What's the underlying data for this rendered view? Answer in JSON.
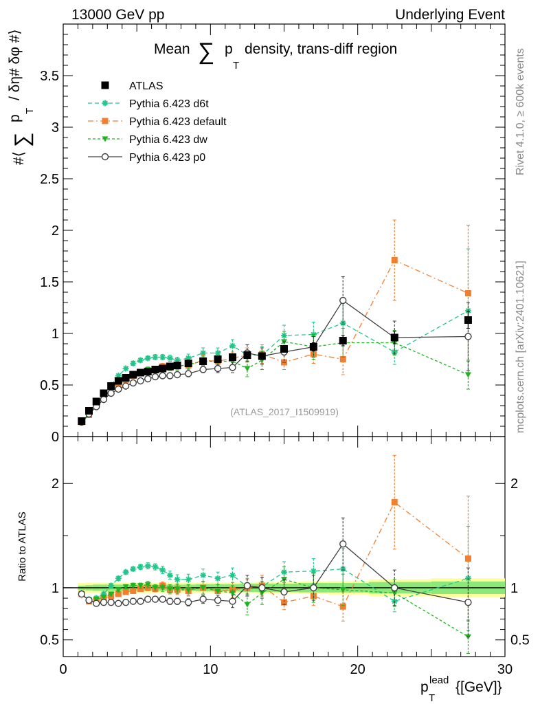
{
  "header": {
    "left": "13000 GeV pp",
    "right": "Underlying Event"
  },
  "side_labels": {
    "rivet": "Rivet 4.1.0, ≥ 600k events",
    "mcplots": "mcplots.cern.ch [arXiv:2401.10621]"
  },
  "chart_data": [
    {
      "type": "scatter",
      "panel": "main",
      "title_parts": {
        "prefix": "Mean",
        "sum": "∑",
        "p": "p",
        "sub": "T",
        "suffix": "density, trans-diff region"
      },
      "ylabel_parts": {
        "hash_open": "#⟨",
        "sum": "∑",
        "p": "p",
        "sub": "T",
        "rest": "/ δη# δφ #⟩"
      },
      "watermark": "(ATLAS_2017_I1509919)",
      "xlim": [
        0,
        30
      ],
      "ylim": [
        0,
        4.0
      ],
      "xticks": [
        "0",
        "10",
        "20",
        "30"
      ],
      "yticks": [
        {
          "v": 0.5,
          "label": "0.5"
        },
        {
          "v": 1,
          "label": "1"
        },
        {
          "v": 1.5,
          "label": "1.5"
        },
        {
          "v": 2,
          "label": "2"
        },
        {
          "v": 2.5,
          "label": "2.5"
        },
        {
          "v": 3,
          "label": "3"
        },
        {
          "v": 3.5,
          "label": "3.5"
        },
        {
          "v": 0,
          "label": "0"
        }
      ],
      "legend_position": "top-left",
      "x": [
        1.25,
        1.75,
        2.25,
        2.75,
        3.25,
        3.75,
        4.25,
        4.75,
        5.25,
        5.75,
        6.25,
        6.75,
        7.25,
        7.75,
        8.5,
        9.5,
        10.5,
        11.5,
        12.5,
        13.5,
        15.0,
        17.0,
        19.0,
        22.5,
        27.5
      ],
      "series": [
        {
          "name": "ATLAS",
          "style": "data",
          "color": "#000000",
          "marker": "square",
          "values": [
            0.15,
            0.25,
            0.34,
            0.42,
            0.49,
            0.54,
            0.57,
            0.6,
            0.62,
            0.63,
            0.65,
            0.66,
            0.68,
            0.69,
            0.71,
            0.73,
            0.75,
            0.77,
            0.79,
            0.78,
            0.85,
            0.87,
            0.93,
            0.96,
            1.13
          ],
          "errors": [
            0.005,
            0.005,
            0.006,
            0.007,
            0.008,
            0.008,
            0.009,
            0.009,
            0.01,
            0.01,
            0.01,
            0.01,
            0.012,
            0.012,
            0.012,
            0.015,
            0.017,
            0.02,
            0.022,
            0.025,
            0.03,
            0.04,
            0.05,
            0.06,
            0.08
          ]
        },
        {
          "name": "Pythia 6.423 d6t",
          "style": "dash",
          "color": "#20c58a",
          "marker": "star",
          "values": [
            0.14,
            0.22,
            0.31,
            0.4,
            0.5,
            0.59,
            0.66,
            0.71,
            0.74,
            0.76,
            0.77,
            0.77,
            0.76,
            0.74,
            0.76,
            0.81,
            0.81,
            0.88,
            0.79,
            0.79,
            0.98,
            0.99,
            1.1,
            0.82,
            1.22
          ],
          "errors": [
            0.01,
            0.01,
            0.01,
            0.012,
            0.012,
            0.015,
            0.015,
            0.02,
            0.02,
            0.02,
            0.025,
            0.025,
            0.03,
            0.03,
            0.04,
            0.05,
            0.05,
            0.06,
            0.07,
            0.08,
            0.1,
            0.12,
            0.2,
            0.12,
            0.6
          ]
        },
        {
          "name": "Pythia 6.423 default",
          "style": "dashdot",
          "color": "#f07f30",
          "marker": "square",
          "values": [
            0.14,
            0.21,
            0.3,
            0.38,
            0.45,
            0.51,
            0.55,
            0.59,
            0.62,
            0.63,
            0.65,
            0.68,
            0.67,
            0.68,
            0.69,
            0.74,
            0.73,
            0.76,
            0.79,
            0.8,
            0.72,
            0.8,
            0.75,
            1.71,
            1.39
          ],
          "errors": [
            0.008,
            0.01,
            0.01,
            0.012,
            0.012,
            0.015,
            0.015,
            0.02,
            0.02,
            0.025,
            0.025,
            0.03,
            0.03,
            0.035,
            0.04,
            0.05,
            0.05,
            0.06,
            0.07,
            0.09,
            0.07,
            0.09,
            0.15,
            0.39,
            0.66
          ]
        },
        {
          "name": "Pythia 6.423 dw",
          "style": "dotted",
          "color": "#1fb41f",
          "marker": "triangle-down",
          "values": [
            0.14,
            0.21,
            0.3,
            0.38,
            0.46,
            0.53,
            0.58,
            0.61,
            0.63,
            0.65,
            0.65,
            0.66,
            0.67,
            0.68,
            0.7,
            0.73,
            0.73,
            0.73,
            0.66,
            0.74,
            0.92,
            0.87,
            0.91,
            0.91,
            0.6
          ],
          "errors": [
            0.008,
            0.01,
            0.01,
            0.012,
            0.012,
            0.015,
            0.015,
            0.02,
            0.02,
            0.025,
            0.025,
            0.03,
            0.03,
            0.035,
            0.04,
            0.05,
            0.05,
            0.06,
            0.08,
            0.09,
            0.1,
            0.12,
            0.14,
            0.12,
            0.14
          ]
        },
        {
          "name": "Pythia 6.423 p0",
          "style": "solid",
          "color": "#404040",
          "marker": "open-circle",
          "values": [
            0.14,
            0.22,
            0.29,
            0.36,
            0.42,
            0.46,
            0.49,
            0.52,
            0.54,
            0.56,
            0.58,
            0.59,
            0.59,
            0.6,
            0.61,
            0.65,
            0.66,
            0.67,
            0.81,
            0.78,
            0.82,
            0.87,
            1.32,
            0.96,
            0.97
          ],
          "errors": [
            0.008,
            0.01,
            0.01,
            0.012,
            0.012,
            0.015,
            0.015,
            0.015,
            0.02,
            0.02,
            0.02,
            0.02,
            0.025,
            0.025,
            0.03,
            0.03,
            0.04,
            0.05,
            0.08,
            0.08,
            0.1,
            0.1,
            0.23,
            0.16,
            0.33
          ]
        }
      ]
    },
    {
      "type": "scatter",
      "panel": "ratio",
      "ylabel": "Ratio to ATLAS",
      "xlabel_parts": {
        "p": "p",
        "sup": "lead",
        "sub": "T",
        "rest": "{[GeV]}"
      },
      "xlim": [
        0,
        30
      ],
      "ylim": [
        0.34,
        2.45
      ],
      "xticks": [
        "0",
        "10",
        "20",
        "30"
      ],
      "yticks": [
        {
          "v": 0.5,
          "label": "0.5"
        },
        {
          "v": 1,
          "label": "1"
        },
        {
          "v": 2,
          "label": "2"
        }
      ],
      "band_inner": [
        0.02,
        0.025,
        0.03,
        0.03,
        0.03,
        0.03,
        0.03,
        0.03,
        0.03,
        0.03,
        0.03,
        0.03,
        0.03,
        0.03,
        0.03,
        0.035,
        0.035,
        0.035,
        0.04,
        0.04,
        0.04,
        0.045,
        0.045,
        0.055,
        0.06
      ],
      "band_outer": [
        0.045,
        0.05,
        0.05,
        0.05,
        0.05,
        0.05,
        0.05,
        0.05,
        0.05,
        0.05,
        0.05,
        0.05,
        0.05,
        0.05,
        0.05,
        0.05,
        0.05,
        0.05,
        0.05,
        0.055,
        0.055,
        0.06,
        0.065,
        0.08,
        0.09
      ],
      "band_colors": {
        "inner": "#8ce87a",
        "outer": "#ffff99"
      },
      "series": [
        {
          "name": "Pythia 6.423 d6t",
          "values": [
            0.95,
            0.89,
            0.9,
            0.94,
            1.02,
            1.09,
            1.15,
            1.18,
            1.2,
            1.21,
            1.2,
            1.17,
            1.12,
            1.08,
            1.08,
            1.12,
            1.09,
            1.12,
            1.01,
            1.01,
            1.15,
            1.16,
            1.18,
            0.87,
            1.09
          ],
          "errors": [
            0.02,
            0.02,
            0.02,
            0.02,
            0.02,
            0.02,
            0.02,
            0.02,
            0.025,
            0.03,
            0.03,
            0.035,
            0.04,
            0.045,
            0.05,
            0.06,
            0.06,
            0.07,
            0.08,
            0.09,
            0.1,
            0.12,
            0.2,
            0.1,
            0.5
          ]
        },
        {
          "name": "Pythia 6.423 default",
          "values": [
            0.94,
            0.87,
            0.87,
            0.9,
            0.92,
            0.94,
            0.96,
            0.97,
            0.99,
            1.0,
            0.99,
            1.02,
            0.98,
            0.98,
            0.97,
            1.0,
            0.97,
            0.98,
            1.0,
            1.02,
            0.86,
            0.92,
            0.82,
            1.82,
            1.28
          ],
          "errors": [
            0.02,
            0.02,
            0.02,
            0.02,
            0.02,
            0.02,
            0.02,
            0.025,
            0.025,
            0.03,
            0.03,
            0.035,
            0.04,
            0.045,
            0.05,
            0.06,
            0.06,
            0.07,
            0.08,
            0.1,
            0.07,
            0.09,
            0.14,
            0.45,
            0.6
          ]
        },
        {
          "name": "Pythia 6.423 dw",
          "values": [
            0.94,
            0.88,
            0.89,
            0.91,
            0.94,
            0.98,
            1.01,
            1.02,
            1.02,
            1.03,
            1.0,
            1.0,
            0.99,
            0.99,
            0.98,
            1.0,
            0.97,
            0.95,
            0.84,
            0.95,
            1.08,
            1.0,
            0.98,
            0.95,
            0.53
          ],
          "errors": [
            0.02,
            0.02,
            0.02,
            0.02,
            0.02,
            0.02,
            0.02,
            0.025,
            0.025,
            0.03,
            0.03,
            0.035,
            0.04,
            0.045,
            0.05,
            0.06,
            0.06,
            0.07,
            0.1,
            0.11,
            0.12,
            0.14,
            0.15,
            0.13,
            0.16
          ]
        },
        {
          "name": "Pythia 6.423 p0",
          "values": [
            0.94,
            0.88,
            0.85,
            0.86,
            0.86,
            0.85,
            0.86,
            0.87,
            0.87,
            0.89,
            0.89,
            0.89,
            0.87,
            0.87,
            0.86,
            0.89,
            0.88,
            0.87,
            1.02,
            1.0,
            0.96,
            1.0,
            1.42,
            1.0,
            0.86
          ],
          "errors": [
            0.02,
            0.02,
            0.02,
            0.02,
            0.02,
            0.02,
            0.02,
            0.02,
            0.025,
            0.025,
            0.025,
            0.025,
            0.03,
            0.03,
            0.035,
            0.04,
            0.05,
            0.06,
            0.1,
            0.1,
            0.12,
            0.12,
            0.25,
            0.17,
            0.33
          ]
        }
      ]
    }
  ]
}
